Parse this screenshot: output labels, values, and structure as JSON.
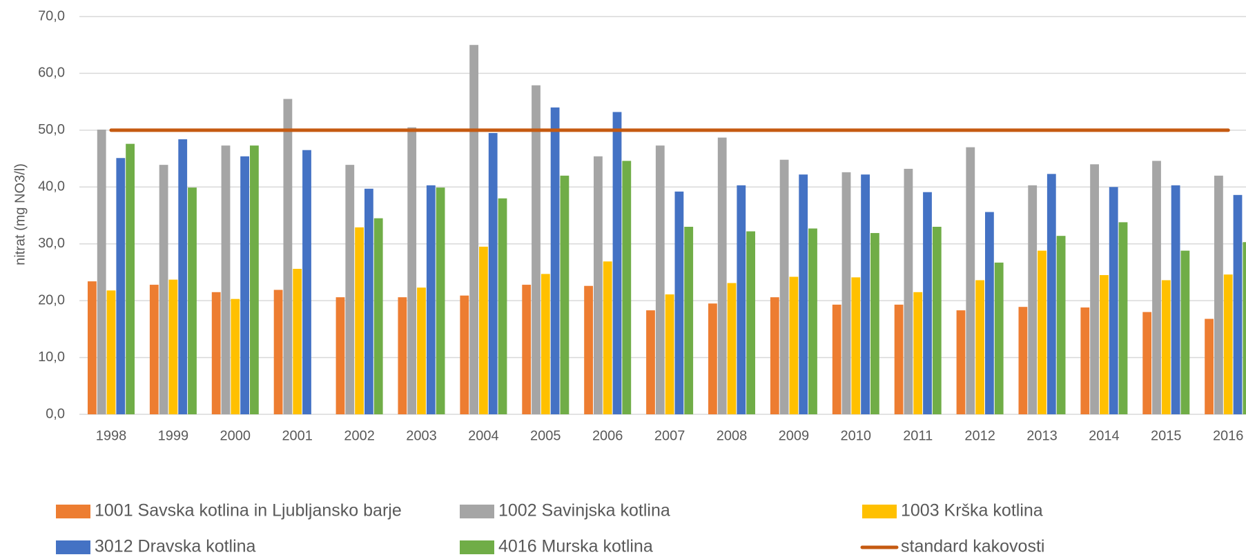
{
  "chart_data": {
    "type": "bar",
    "y_label": "nitrat (mg NO3/l)",
    "categories": [
      "1998",
      "1999",
      "2000",
      "2001",
      "2002",
      "2003",
      "2004",
      "2005",
      "2006",
      "2007",
      "2008",
      "2009",
      "2010",
      "2011",
      "2012",
      "2013",
      "2014",
      "2015",
      "2016"
    ],
    "series": [
      {
        "name": "1001 Savska kotlina in Ljubljansko barje",
        "color": "#ED7D31",
        "values": [
          23.4,
          22.8,
          21.5,
          21.9,
          20.6,
          20.6,
          20.9,
          22.8,
          22.6,
          18.3,
          19.5,
          20.6,
          19.3,
          19.3,
          18.3,
          18.9,
          18.8,
          18.0,
          16.8
        ]
      },
      {
        "name": "1002 Savinjska kotlina",
        "color": "#A5A5A5",
        "values": [
          50.1,
          43.9,
          47.3,
          55.5,
          43.9,
          50.5,
          65.0,
          57.9,
          45.4,
          47.3,
          48.7,
          44.8,
          42.6,
          43.2,
          47.0,
          40.3,
          44.0,
          44.6,
          42.0
        ]
      },
      {
        "name": "1003 Krška kotlina",
        "color": "#FFC000",
        "values": [
          21.8,
          23.7,
          20.3,
          25.6,
          32.9,
          22.3,
          29.5,
          24.7,
          26.9,
          21.1,
          23.1,
          24.2,
          24.1,
          21.5,
          23.6,
          28.8,
          24.5,
          23.6,
          24.6
        ]
      },
      {
        "name": "3012 Dravska kotlina",
        "color": "#4472C4",
        "values": [
          45.1,
          48.4,
          45.4,
          46.5,
          39.7,
          40.3,
          49.5,
          54.0,
          53.2,
          39.2,
          40.3,
          42.2,
          42.2,
          39.1,
          35.6,
          42.3,
          40.0,
          40.3,
          38.6
        ]
      },
      {
        "name": "4016 Murska kotlina",
        "color": "#70AD47",
        "values": [
          47.6,
          39.9,
          47.3,
          null,
          34.5,
          39.9,
          38.0,
          42.0,
          44.6,
          33.0,
          32.2,
          32.7,
          31.9,
          33.0,
          26.7,
          31.4,
          33.8,
          28.8,
          30.3
        ]
      },
      {
        "name": "standard kakovosti",
        "color": "#C55A11",
        "type": "line",
        "values": [
          50,
          50,
          50,
          50,
          50,
          50,
          50,
          50,
          50,
          50,
          50,
          50,
          50,
          50,
          50,
          50,
          50,
          50,
          50
        ]
      }
    ],
    "ylim": [
      0,
      70
    ],
    "yticks": [
      {
        "value": 0,
        "label": "0,0"
      },
      {
        "value": 10,
        "label": "10,0"
      },
      {
        "value": 20,
        "label": "20,0"
      },
      {
        "value": 30,
        "label": "30,0"
      },
      {
        "value": 40,
        "label": "40,0"
      },
      {
        "value": 50,
        "label": "50,0"
      },
      {
        "value": 60,
        "label": "60,0"
      },
      {
        "value": 70,
        "label": "70,0"
      }
    ],
    "grid": true
  }
}
